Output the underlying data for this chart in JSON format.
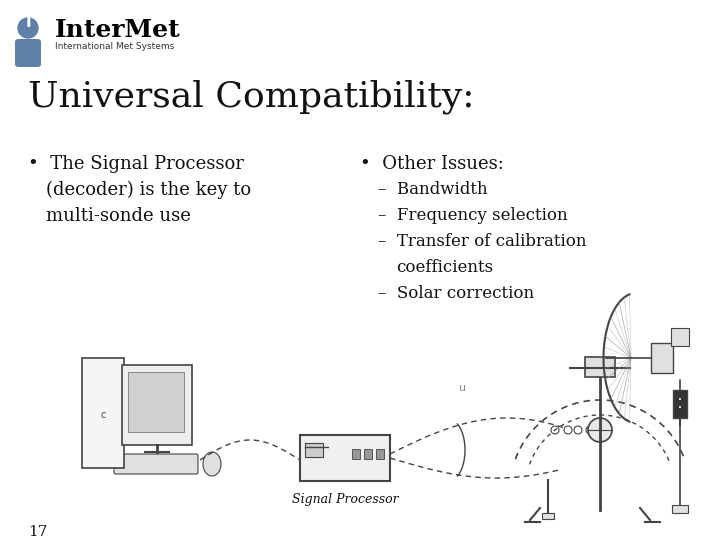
{
  "background_color": "#ffffff",
  "title": "Universal Compatibility:",
  "title_fontsize": 26,
  "logo_text_main": "InterMet",
  "logo_text_sub": "International Met Systems",
  "bullet1_line1": "•  The Signal Processor",
  "bullet1_line2": "    (decoder) is the key to",
  "bullet1_line3": "    multi-sonde use",
  "bullet2_line1": "•  Other Issues:",
  "bullet2_sub1": "–  Bandwidth",
  "bullet2_sub2": "–  Frequency selection",
  "bullet2_sub3": "–  Transfer of calibration",
  "bullet2_sub3b": "     coefficients",
  "bullet2_sub4": "–  Solar correction",
  "signal_processor_label": "Signal Processor",
  "page_number": "17",
  "text_color": "#111111",
  "logo_blue": "#6080aa",
  "font_size_bullet": 13,
  "font_size_sub": 12,
  "font_size_page": 11,
  "line_color": "#444444"
}
